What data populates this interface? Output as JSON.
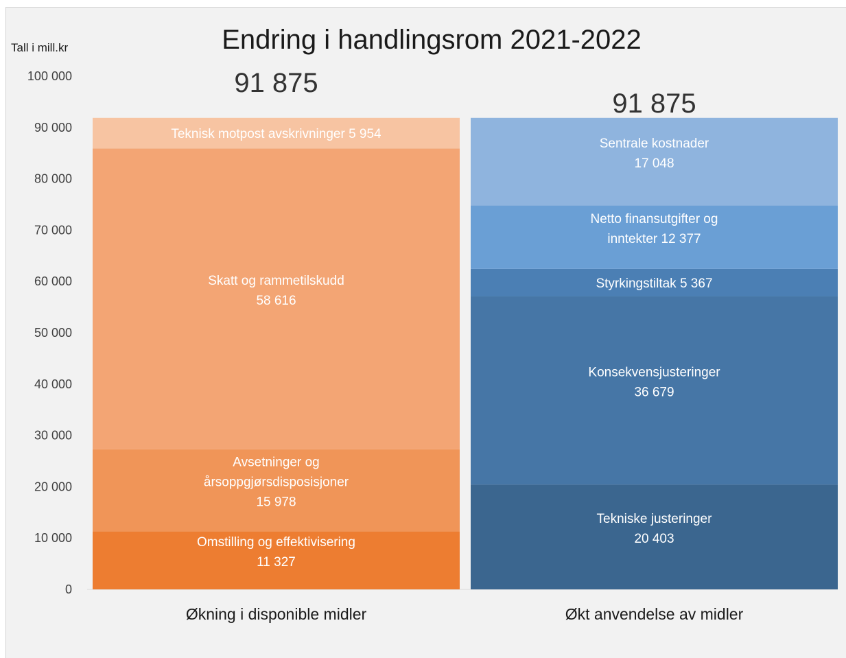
{
  "chart_data": {
    "type": "bar",
    "stacked": true,
    "title": "Endring i handlingsrom 2021-2022",
    "ylabel": "Tall i mill.kr",
    "ylim": [
      0,
      100000
    ],
    "yticks": [
      "0",
      "10 000",
      "20 000",
      "30 000",
      "40 000",
      "50 000",
      "60 000",
      "70 000",
      "80 000",
      "90 000",
      "100 000"
    ],
    "grid": false,
    "legend": "none",
    "categories": [
      "Økning i disponible midler",
      "Økt anvendelse av midler"
    ],
    "totals": [
      {
        "value": 91875,
        "label": "91 875"
      },
      {
        "value": 91875,
        "label": "91 875"
      }
    ],
    "stacks": [
      {
        "category": "Økning i disponible midler",
        "segments": [
          {
            "lines": [
              "Omstilling og effektivisering",
              "11 327"
            ],
            "value": 11327,
            "color": "#ed7d31"
          },
          {
            "lines": [
              "Avsetninger og",
              "årsoppgjørsdisposisjoner",
              "15 978"
            ],
            "value": 15978,
            "color": "#f09558"
          },
          {
            "lines": [
              "Skatt og rammetilskudd",
              "58 616"
            ],
            "value": 58616,
            "color": "#f3a574"
          },
          {
            "lines": [
              "Teknisk motpost avskrivninger   5 954"
            ],
            "value": 5954,
            "color": "#f7c4a2"
          }
        ]
      },
      {
        "category": "Økt anvendelse av midler",
        "segments": [
          {
            "lines": [
              "Tekniske justeringer",
              "20 403"
            ],
            "value": 20403,
            "color": "#3b668f"
          },
          {
            "lines": [
              "Konsekvensjusteringer",
              "36 679"
            ],
            "value": 36679,
            "color": "#4676a6"
          },
          {
            "lines": [
              "Styrkingstiltak  5 367"
            ],
            "value": 5367,
            "color": "#4b7fb4"
          },
          {
            "lines": [
              "Netto finansutgifter og",
              "inntekter  12 377"
            ],
            "value": 12377,
            "color": "#6a9fd5"
          },
          {
            "lines": [
              "Sentrale kostnader",
              "17 048"
            ],
            "value": 17048,
            "color": "#8fb4de"
          }
        ]
      }
    ]
  }
}
